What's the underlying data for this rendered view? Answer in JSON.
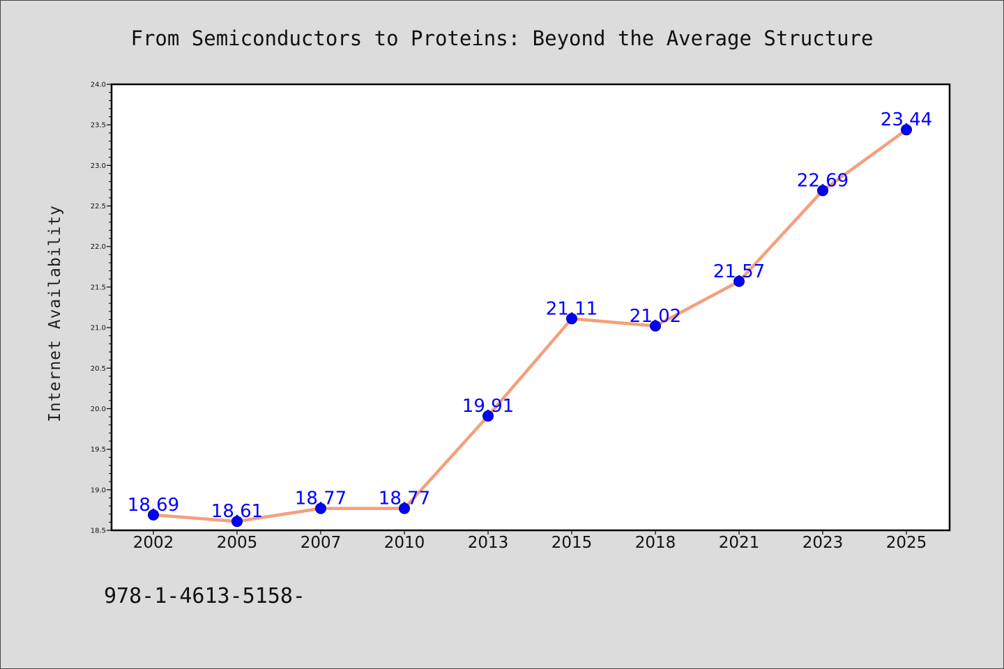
{
  "footer_text": "978-1-4613-5158-",
  "chart_data": {
    "type": "line",
    "title": "From Semiconductors to Proteins: Beyond the Average Structure",
    "xlabel": "",
    "ylabel": "Internet Availability",
    "categories": [
      "2002",
      "2005",
      "2007",
      "2010",
      "2013",
      "2015",
      "2018",
      "2021",
      "2023",
      "2025"
    ],
    "series": [
      {
        "values": [
          18.69,
          18.61,
          18.77,
          18.77,
          19.91,
          21.11,
          21.02,
          21.57,
          22.69,
          23.44
        ],
        "labels": [
          "18.69",
          "18.61",
          "18.77",
          "18.77",
          "19.91",
          "21.11",
          "21.02",
          "21.57",
          "22.69",
          "23.44"
        ],
        "line_color": "#f4a07c",
        "marker_color": "#0000ff"
      }
    ],
    "ylim": [
      18.5,
      24.0
    ],
    "yticks": [
      "18.5",
      "19.0",
      "19.5",
      "20.0",
      "20.5",
      "21.0",
      "21.5",
      "22.0",
      "22.5",
      "23.0",
      "23.5",
      "24.0"
    ],
    "grid": false,
    "legend": "none"
  }
}
